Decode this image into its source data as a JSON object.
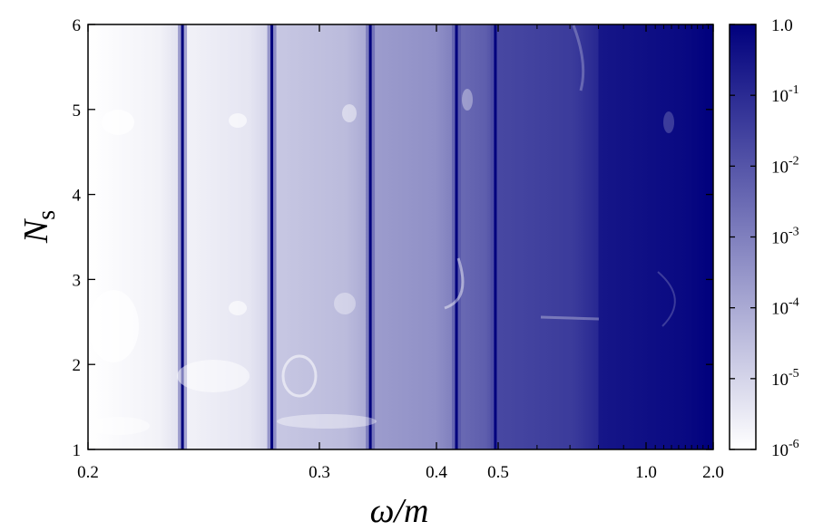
{
  "chart_data": {
    "type": "heatmap",
    "title": "",
    "xlabel": "ω/m",
    "ylabel_main": "N",
    "ylabel_sub": "s",
    "x_ticks": [
      {
        "value": 0.2,
        "label": "0.2"
      },
      {
        "value": 0.3,
        "label": "0.3"
      },
      {
        "value": 0.4,
        "label": "0.4"
      },
      {
        "value": 0.5,
        "label": "0.5"
      },
      {
        "value": 1.0,
        "label": "1.0"
      },
      {
        "value": 2.0,
        "label": "2.0"
      }
    ],
    "y_ticks": [
      {
        "value": 1,
        "label": "1"
      },
      {
        "value": 2,
        "label": "2"
      },
      {
        "value": 3,
        "label": "3"
      },
      {
        "value": 4,
        "label": "4"
      },
      {
        "value": 5,
        "label": "5"
      },
      {
        "value": 6,
        "label": "6"
      }
    ],
    "ylim": [
      1,
      6
    ],
    "colorbar": {
      "scale": "log",
      "range": [
        1e-06,
        1.0
      ],
      "color_low": "#ffffff",
      "color_high": "#00007d",
      "ticks": [
        {
          "value": 1.0,
          "base": "1.0",
          "exp": ""
        },
        {
          "value": 0.1,
          "base": "10",
          "exp": "-1"
        },
        {
          "value": 0.01,
          "base": "10",
          "exp": "-2"
        },
        {
          "value": 0.001,
          "base": "10",
          "exp": "-3"
        },
        {
          "value": 0.0001,
          "base": "10",
          "exp": "-4"
        },
        {
          "value": 1e-05,
          "base": "10",
          "exp": "-5"
        },
        {
          "value": 1e-06,
          "base": "10",
          "exp": "-6"
        }
      ]
    },
    "bands": [
      {
        "from": 0.2,
        "to": 0.236,
        "level": 1e-06
      },
      {
        "from": 0.236,
        "to": 0.276,
        "level": 2e-06
      },
      {
        "from": 0.276,
        "to": 0.34,
        "level": 2e-05
      },
      {
        "from": 0.34,
        "to": 0.43,
        "level": 0.0002
      },
      {
        "from": 0.43,
        "to": 0.495,
        "level": 0.003
      },
      {
        "from": 0.495,
        "to": 0.8,
        "level": 0.02
      },
      {
        "from": 0.8,
        "to": 2.0,
        "level": 0.3
      }
    ],
    "resonance_lines": [
      0.236,
      0.276,
      0.34,
      0.43,
      0.495
    ]
  }
}
